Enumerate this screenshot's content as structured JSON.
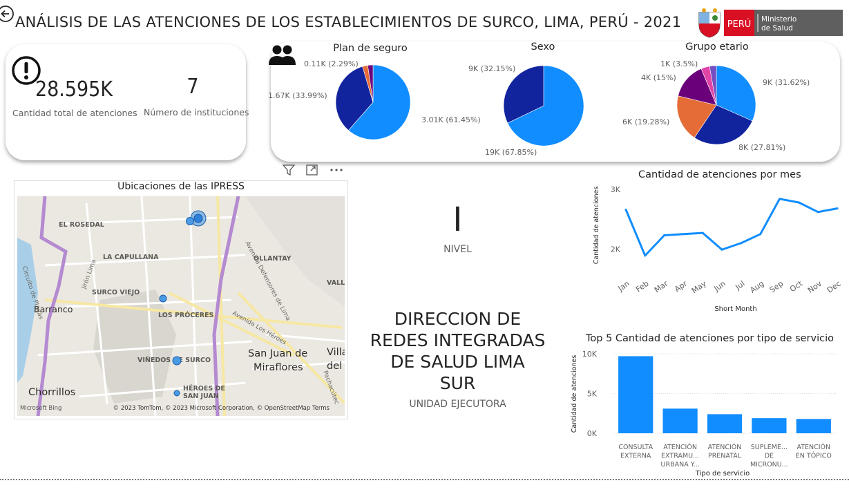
{
  "page": {
    "title": "ANÁLISIS DE LAS ATENCIONES DE LOS ESTABLECIMIENTOS DE SURCO, LIMA, PERÚ - 2021"
  },
  "logo": {
    "country": "PERÚ",
    "ministry_line1": "Ministerio",
    "ministry_line2": "de Salud"
  },
  "kpis": {
    "total_value": "28.595K",
    "total_label": "Cantidad total de atenciones",
    "institutions_value": "7",
    "institutions_label": "Número de instituciones"
  },
  "nivel": {
    "value": "I",
    "label": "NIVEL"
  },
  "unidad": {
    "lines": [
      "DIRECCION DE",
      "REDES INTEGRADAS",
      "DE SALUD LIMA",
      "SUR"
    ],
    "label": "UNIDAD EJECUTORA"
  },
  "map": {
    "title": "Ubicaciones de las IPRESS",
    "labels": [
      "EL ROSEDAL",
      "LA CAPULLANA",
      "SURCO VIEJO",
      "LOS PRÓCERES",
      "VIÑEDOS DE SURCO",
      "HÉROES DE",
      "SAN JUAN",
      "OLLANTAY",
      "VALLE"
    ],
    "big_labels": [
      "Barranco",
      "Chorrillos",
      "San Juan de",
      "Miraflores",
      "Villa",
      "del"
    ],
    "roads": [
      "Circuito de Playas",
      "Jirón Lima",
      "Avenida Defensores de Lima",
      "Avenida Los Héroes",
      "Pachacútec"
    ],
    "credit": "© 2023 TomTom, © 2023 Microsoft Corporation, © OpenStreetMap  Terms",
    "bing": "Microsoft Bing"
  },
  "colors": {
    "light_blue": "#118DFF",
    "dark_blue": "#12239E",
    "orange": "#E66C37",
    "purple": "#6B007B",
    "pink": "#E044A7",
    "light_purple": "#744EC2"
  },
  "chart_data": [
    {
      "type": "pie",
      "title": "Plan de seguro",
      "slices": [
        {
          "value": 3.01,
          "label": "3.01K (61.45%)",
          "percent": 61.45,
          "color": "#118DFF"
        },
        {
          "value": 1.67,
          "label": "1.67K (33.99%)",
          "percent": 33.99,
          "color": "#12239E"
        },
        {
          "value": 0.11,
          "label": "0.11K (2.29%)",
          "percent": 2.29,
          "color": "#E66C37"
        },
        {
          "value": 0.11,
          "label": "",
          "percent": 2.27,
          "color": "#6B007B"
        }
      ]
    },
    {
      "type": "pie",
      "title": "Sexo",
      "slices": [
        {
          "value": 19,
          "label": "19K (67.85%)",
          "percent": 67.85,
          "color": "#118DFF"
        },
        {
          "value": 9,
          "label": "9K (32.15%)",
          "percent": 32.15,
          "color": "#12239E"
        }
      ]
    },
    {
      "type": "pie",
      "title": "Grupo etario",
      "slices": [
        {
          "value": 9,
          "label": "9K (31.62%)",
          "percent": 31.62,
          "color": "#118DFF"
        },
        {
          "value": 8,
          "label": "8K (27.81%)",
          "percent": 27.81,
          "color": "#12239E"
        },
        {
          "value": 6,
          "label": "6K (19.28%)",
          "percent": 19.28,
          "color": "#E66C37"
        },
        {
          "value": 4,
          "label": "4K (15%)",
          "percent": 15.0,
          "color": "#6B007B"
        },
        {
          "value": 1,
          "label": "1K (3.5%)",
          "percent": 3.5,
          "color": "#E044A7"
        },
        {
          "value": 0.8,
          "label": "",
          "percent": 2.79,
          "color": "#744EC2"
        }
      ]
    },
    {
      "type": "line",
      "title": "Cantidad de atenciones por mes",
      "xlabel": "Short Month",
      "ylabel": "Cantidad de atenciones",
      "categories": [
        "Jan",
        "Feb",
        "Mar",
        "Apr",
        "May",
        "Jun",
        "Jul",
        "Aug",
        "Sep",
        "Oct",
        "Nov",
        "Dec"
      ],
      "values": [
        2660,
        1890,
        2230,
        2250,
        2270,
        1990,
        2100,
        2250,
        2840,
        2780,
        2620,
        2680
      ],
      "yticks": [
        {
          "value": 2000,
          "label": "2K"
        },
        {
          "value": 3000,
          "label": "3K"
        }
      ],
      "ylim": [
        1750,
        3000
      ],
      "grid": false
    },
    {
      "type": "bar",
      "title": "Top 5 Cantidad de atenciones por tipo de servicio",
      "xlabel": "Tipo de servicio",
      "ylabel": "Cantidad de atenciones",
      "categories": [
        [
          "CONSULTA",
          "EXTERNA"
        ],
        [
          "ATENCIÓN",
          "EXTRAMU...",
          "URBANA Y..."
        ],
        [
          "ATENCIÓN",
          "PRENATAL"
        ],
        [
          "SUPLEME...",
          "DE",
          "MICRONU..."
        ],
        [
          "ATENCIÓN",
          "EN TÓPICO"
        ]
      ],
      "values": [
        9700,
        3100,
        2400,
        1900,
        1800
      ],
      "yticks": [
        {
          "value": 0,
          "label": "0K"
        },
        {
          "value": 5000,
          "label": "5K"
        },
        {
          "value": 10000,
          "label": "10K"
        }
      ],
      "ylim": [
        0,
        10000
      ],
      "grid": true
    }
  ]
}
